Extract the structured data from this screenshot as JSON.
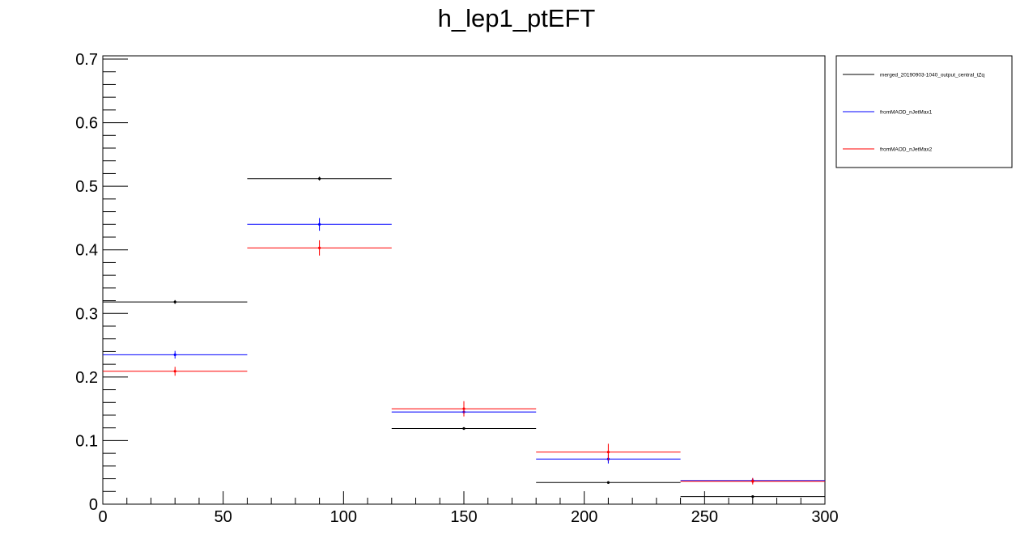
{
  "chart_data": {
    "type": "line",
    "title": "h_lep1_ptEFT",
    "xlabel": "",
    "ylabel": "",
    "xlim": [
      0,
      300
    ],
    "ylim": [
      0,
      0.7
    ],
    "x_ticks": [
      "0",
      "50",
      "100",
      "150",
      "200",
      "250",
      "300"
    ],
    "y_ticks": [
      "0",
      "0.1",
      "0.2",
      "0.3",
      "0.4",
      "0.5",
      "0.6",
      "0.7"
    ],
    "bins": [
      [
        0,
        60
      ],
      [
        60,
        120
      ],
      [
        120,
        180
      ],
      [
        180,
        240
      ],
      [
        240,
        300
      ]
    ],
    "x": [
      30,
      90,
      150,
      210,
      270
    ],
    "legend_position": "top-right",
    "grid": false,
    "series": [
      {
        "name": "merged_20190903-1040_output_central_tZq",
        "color": "#000000",
        "values": [
          0.318,
          0.512,
          0.119,
          0.034,
          0.012
        ],
        "errors": [
          0.003,
          0.003,
          0.002,
          0.002,
          0.001
        ]
      },
      {
        "name": "fromMAOD_nJetMax1",
        "color": "#0000ff",
        "values": [
          0.235,
          0.44,
          0.145,
          0.071,
          0.037
        ],
        "errors": [
          0.006,
          0.01,
          0.006,
          0.007,
          0.004
        ]
      },
      {
        "name": "fromMAOD_nJetMax2",
        "color": "#ff0000",
        "values": [
          0.209,
          0.403,
          0.15,
          0.082,
          0.036
        ],
        "errors": [
          0.007,
          0.012,
          0.012,
          0.013,
          0.005
        ]
      }
    ]
  }
}
